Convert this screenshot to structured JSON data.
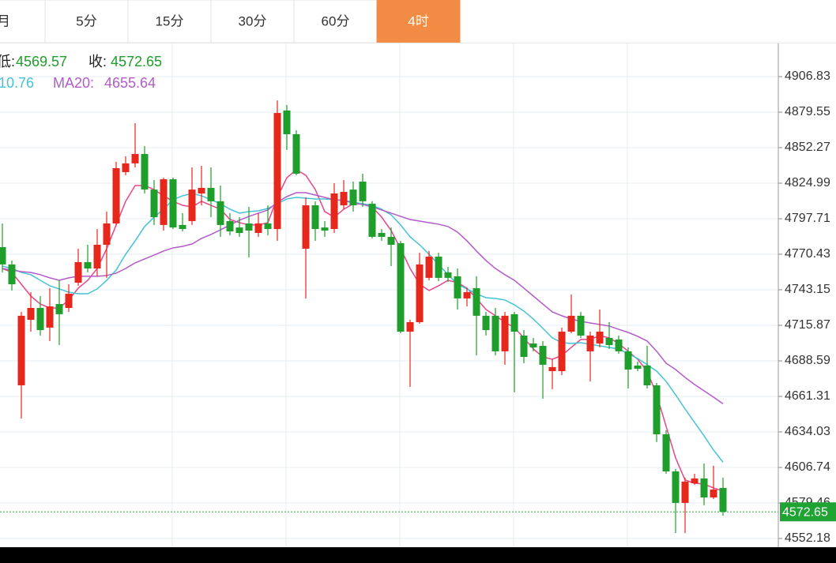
{
  "chart_data": {
    "type": "candlestick",
    "tabs": [
      {
        "label": "月"
      },
      {
        "label": "5分"
      },
      {
        "label": "15分"
      },
      {
        "label": "30分"
      },
      {
        "label": "60分"
      },
      {
        "label": "4时",
        "active": true
      }
    ],
    "info": {
      "low_label": "低:",
      "close_label": "收:",
      "ma10_text": "10.76",
      "ma20_label": "MA20:"
    },
    "up_color": "#e8271c",
    "down_color": "#1f9e2c",
    "open": [
      4775.9,
      4762.6,
      4669.8,
      4720.1,
      4729.2,
      4714.1,
      4732.2,
      4729.2,
      4748.6,
      4764.4,
      4759.5,
      4777.7,
      4794.1,
      4833.5,
      4840.2,
      4847.4,
      4820.1,
      4792.9,
      4828.0,
      4792.9,
      4795.9,
      4817.1,
      4821.4,
      4811.1,
      4795.9,
      4791.0,
      4794.1,
      4786.8,
      4794.1,
      4789.8,
      4880.8,
      4862.6,
      4774.7,
      4808.0,
      4791.0,
      4789.8,
      4808.0,
      4820.1,
      4826.2,
      4809.2,
      4786.8,
      4783.8,
      4778.9,
      4711.0,
      4718.3,
      4752.3,
      4768.6,
      4756.5,
      4753.5,
      4736.5,
      4744.4,
      4723.2,
      4723.2,
      4695.9,
      4724.4,
      4708.0,
      4701.9,
      4700.1,
      4680.7,
      4680.7,
      4711.0,
      4723.2,
      4695.9,
      4701.9,
      4706.2,
      4705.0,
      4695.9,
      4685.0,
      4685.0,
      4669.8,
      4632.2,
      4603.7,
      4579.5,
      4594.6,
      4598.3,
      4583.7,
      4591.0
    ],
    "high": [
      4794.1,
      4765.6,
      4726.2,
      4741.3,
      4738.3,
      4744.4,
      4750.4,
      4747.4,
      4774.7,
      4777.7,
      4789.8,
      4803.2,
      4841.4,
      4845.6,
      4871.1,
      4853.5,
      4827.4,
      4829.2,
      4829.2,
      4802.0,
      4837.1,
      4838.3,
      4837.1,
      4823.2,
      4802.0,
      4798.9,
      4806.8,
      4802.0,
      4808.0,
      4888.6,
      4885.0,
      4865.6,
      4814.1,
      4811.1,
      4795.9,
      4825.0,
      4827.4,
      4826.2,
      4832.3,
      4811.1,
      4789.8,
      4791.0,
      4780.7,
      4720.1,
      4771.6,
      4772.9,
      4771.6,
      4760.7,
      4759.5,
      4744.4,
      4753.5,
      4726.2,
      4729.2,
      4726.2,
      4726.2,
      4712.2,
      4706.2,
      4703.8,
      4689.8,
      4714.1,
      4739.5,
      4726.2,
      4711.0,
      4728.0,
      4718.3,
      4708.0,
      4698.9,
      4688.0,
      4700.1,
      4671.6,
      4635.3,
      4605.6,
      4598.9,
      4601.9,
      4609.8,
      4608.0,
      4598.9
    ],
    "low": [
      4756.5,
      4742.6,
      4644.3,
      4711.0,
      4708.0,
      4703.8,
      4700.7,
      4726.2,
      4746.2,
      4756.5,
      4753.5,
      4752.3,
      4792.9,
      4831.1,
      4837.1,
      4817.1,
      4792.9,
      4788.6,
      4789.8,
      4788.0,
      4792.9,
      4808.0,
      4798.9,
      4783.8,
      4785.0,
      4783.8,
      4768.0,
      4783.8,
      4785.0,
      4780.7,
      4850.5,
      4831.1,
      4736.5,
      4780.7,
      4783.8,
      4786.8,
      4805.0,
      4803.2,
      4806.8,
      4782.6,
      4780.7,
      4761.3,
      4709.8,
      4668.6,
      4717.1,
      4750.4,
      4749.8,
      4749.2,
      4728.0,
      4730.4,
      4692.8,
      4708.0,
      4692.8,
      4685.6,
      4664.4,
      4686.8,
      4695.9,
      4659.5,
      4666.8,
      4677.7,
      4709.8,
      4706.2,
      4672.8,
      4698.9,
      4697.7,
      4694.1,
      4667.4,
      4680.7,
      4667.4,
      4626.2,
      4601.9,
      4556.4,
      4556.4,
      4593.4,
      4577.7,
      4582.5,
      4569.57
    ],
    "close": [
      4762.6,
      4747.4,
      4723.2,
      4729.2,
      4712.2,
      4730.4,
      4724.4,
      4740.1,
      4764.4,
      4759.5,
      4777.7,
      4794.1,
      4836.5,
      4840.2,
      4847.4,
      4820.1,
      4798.9,
      4828.0,
      4791.0,
      4789.8,
      4820.1,
      4821.4,
      4811.1,
      4792.9,
      4788.0,
      4786.8,
      4788.6,
      4794.1,
      4789.8,
      4878.9,
      4862.6,
      4832.3,
      4808.0,
      4789.8,
      4788.6,
      4817.1,
      4818.3,
      4808.0,
      4811.1,
      4783.8,
      4783.8,
      4777.7,
      4711.0,
      4718.3,
      4762.6,
      4768.6,
      4752.3,
      4752.3,
      4736.5,
      4741.3,
      4723.2,
      4712.2,
      4695.9,
      4723.2,
      4711.0,
      4691.6,
      4698.9,
      4685.6,
      4683.8,
      4711.0,
      4723.2,
      4708.0,
      4708.0,
      4711.0,
      4700.7,
      4695.9,
      4681.9,
      4682.5,
      4669.8,
      4632.2,
      4603.7,
      4579.5,
      4595.9,
      4598.3,
      4583.7,
      4589.8,
      4572.65
    ],
    "lines": [
      {
        "color": "#e8468a",
        "values": [
          4759.5,
          4756.5,
          4747.4,
          4738.3,
          4732.2,
          4729.2,
          4729.2,
          4735.3,
          4744.4,
          4750.4,
          4759.5,
          4774.7,
          4792.9,
          4811.1,
          4823.2,
          4823.2,
          4820.1,
          4815.3,
          4811.1,
          4808.0,
          4806.8,
          4811.1,
          4808.0,
          4805.0,
          4797.1,
          4794.7,
          4792.9,
          4792.9,
          4794.7,
          4814.1,
          4829.2,
          4835.3,
          4831.1,
          4820.1,
          4803.2,
          4798.9,
          4805.0,
          4809.2,
          4809.2,
          4806.8,
          4798.9,
          4788.6,
          4774.7,
          4759.5,
          4747.4,
          4742.6,
          4746.2,
          4750.4,
          4748.6,
          4744.4,
          4736.5,
          4728.0,
          4723.2,
          4718.3,
          4714.1,
          4706.2,
          4697.7,
          4691.6,
          4689.8,
          4692.8,
          4698.9,
          4705.0,
          4705.0,
          4708.0,
          4706.2,
          4701.9,
          4695.9,
          4689.8,
          4680.7,
          4662.5,
          4638.3,
          4614.0,
          4597.1,
          4594.6,
          4594.0,
          4591.0,
          4588.6
        ]
      },
      {
        "color": "#45c3d6",
        "values": [
          4761.3,
          4759.5,
          4756.5,
          4754.7,
          4750.4,
          4746.2,
          4743.8,
          4741.3,
          4740.1,
          4740.1,
          4743.8,
          4750.4,
          4758.3,
          4770.4,
          4780.7,
          4791.7,
          4798.9,
          4805.0,
          4812.3,
          4815.3,
          4817.1,
          4815.3,
          4812.3,
          4809.2,
          4805.0,
          4802.0,
          4803.2,
          4803.8,
          4805.6,
          4809.2,
          4812.9,
          4814.1,
          4813.5,
          4812.9,
          4812.9,
          4812.3,
          4811.7,
          4810.4,
          4809.2,
          4808.0,
          4805.0,
          4800.7,
          4792.9,
          4783.8,
          4777.7,
          4770.4,
          4762.6,
          4754.7,
          4747.4,
          4743.8,
          4740.1,
          4737.1,
          4736.5,
          4735.3,
          4731.6,
          4726.8,
          4720.7,
          4713.5,
          4706.2,
          4702.5,
          4701.9,
          4702.5,
          4701.3,
          4700.1,
          4698.9,
          4697.7,
          4694.1,
          4690.4,
          4685.6,
          4680.7,
          4672.8,
          4662.5,
          4651.6,
          4641.3,
          4631.0,
          4620.1,
          4610.76
        ]
      },
      {
        "color": "#b35bc9",
        "values": [
          4759.5,
          4758.3,
          4757.1,
          4756.5,
          4754.7,
          4752.3,
          4750.4,
          4752.3,
          4753.5,
          4753.5,
          4753.5,
          4754.1,
          4755.9,
          4759.5,
          4763.8,
          4766.8,
          4769.8,
          4772.9,
          4775.3,
          4776.5,
          4778.3,
          4782.6,
          4785.6,
          4789.2,
          4792.9,
          4796.5,
          4799.5,
          4802.0,
          4804.4,
          4810.4,
          4814.7,
          4817.7,
          4817.7,
          4815.9,
          4814.1,
          4812.3,
          4811.7,
          4809.8,
          4808.6,
          4806.8,
          4804.4,
          4802.0,
          4799.5,
          4797.1,
          4795.9,
          4794.7,
          4793.5,
          4791.7,
          4787.4,
          4780.7,
          4772.9,
          4765.6,
          4759.5,
          4754.7,
          4750.4,
          4744.4,
          4738.3,
          4732.2,
          4726.2,
          4723.2,
          4720.7,
          4718.9,
          4717.7,
          4716.5,
          4715.3,
          4712.8,
          4710.4,
          4707.4,
          4703.8,
          4695.9,
          4686.8,
          4681.9,
          4675.9,
          4670.4,
          4665.6,
          4660.7,
          4655.64
        ]
      }
    ],
    "ylim": [
      4545.5,
      4932.3
    ],
    "yticks": [
      4906.83,
      4879.55,
      4852.27,
      4824.99,
      4797.71,
      4770.43,
      4743.15,
      4715.87,
      4688.59,
      4661.31,
      4634.03,
      4606.74,
      4579.46,
      4552.18
    ],
    "grid": true
  }
}
